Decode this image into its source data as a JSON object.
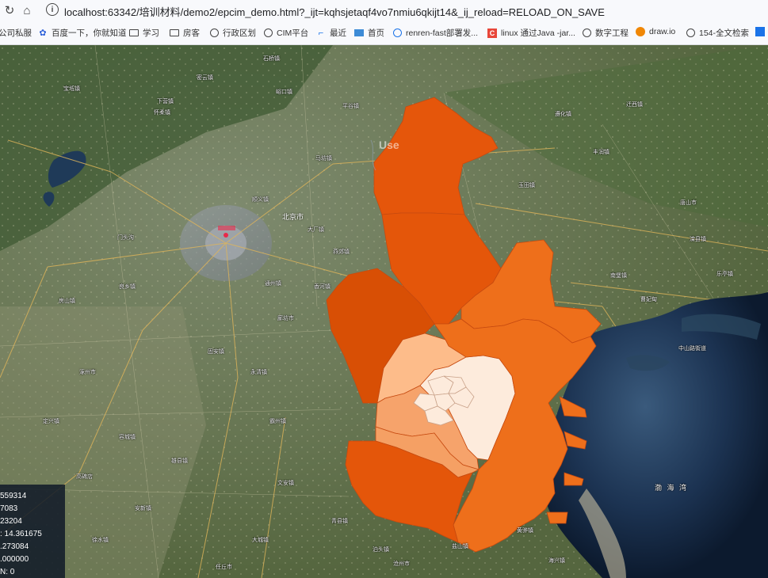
{
  "browser": {
    "url": "localhost:63342/培训材料/demo2/epcim_demo.html?_ijt=kqhsjetaqf4vo7nmiu6qkijt14&_ij_reload=RELOAD_ON_SAVE"
  },
  "bookmarks": [
    {
      "label": "公司私服",
      "icon": "none"
    },
    {
      "label": "百度一下，你就知道",
      "icon": "baidu-paw"
    },
    {
      "label": "学习",
      "icon": "folder"
    },
    {
      "label": "房客",
      "icon": "folder"
    },
    {
      "label": "行政区划",
      "icon": "globe"
    },
    {
      "label": "CIM平台",
      "icon": "globe"
    },
    {
      "label": "最近",
      "icon": "aliyun"
    },
    {
      "label": "首页",
      "icon": "page"
    },
    {
      "label": "renren-fast部署发...",
      "icon": "globe-blue"
    },
    {
      "label": "linux 通过Java -jar...",
      "icon": "csdn-c"
    },
    {
      "label": "数字工程",
      "icon": "globe"
    },
    {
      "label": "draw.io",
      "icon": "drawio"
    },
    {
      "label": "154-全文检索",
      "icon": "globe"
    }
  ],
  "map": {
    "overlay_label": "Use",
    "city_label": "北京市",
    "sea_label": "渤 海 湾",
    "district_colors": [
      "#d84f05",
      "#e4560a",
      "#ee6f1b",
      "#f6a36b",
      "#fdbc8a",
      "#fdebdc"
    ],
    "place_names": [
      "宝坻镇",
      "石桥镇",
      "下营镇",
      "大厂镇",
      "平谷镇",
      "马坊镇",
      "峪口镇",
      "怀柔镇",
      "密云镇",
      "顺义镇",
      "通州镇",
      "燕郊镇",
      "香河镇",
      "廊坊市",
      "固安镇",
      "涿州市",
      "良乡镇",
      "门头沟",
      "房山镇",
      "永清镇",
      "霸州镇",
      "文安镇",
      "大城镇",
      "任丘市",
      "雄县镇",
      "安新镇",
      "容城镇",
      "高碑店",
      "定兴镇",
      "徐水镇",
      "唐山市",
      "丰润镇",
      "玉田镇",
      "遵化镇",
      "迁西镇",
      "滦县镇",
      "乐亭镇",
      "曹妃甸",
      "南堡镇",
      "中山路街道",
      "黄骅镇",
      "海兴镇",
      "盐山镇",
      "沧州市",
      "青县镇",
      "泊头镇"
    ]
  },
  "stats": {
    "lines": [
      "559314",
      "7083",
      "23204",
      ": 14.361675",
      ".273084",
      ".000000",
      "N: 0"
    ]
  }
}
